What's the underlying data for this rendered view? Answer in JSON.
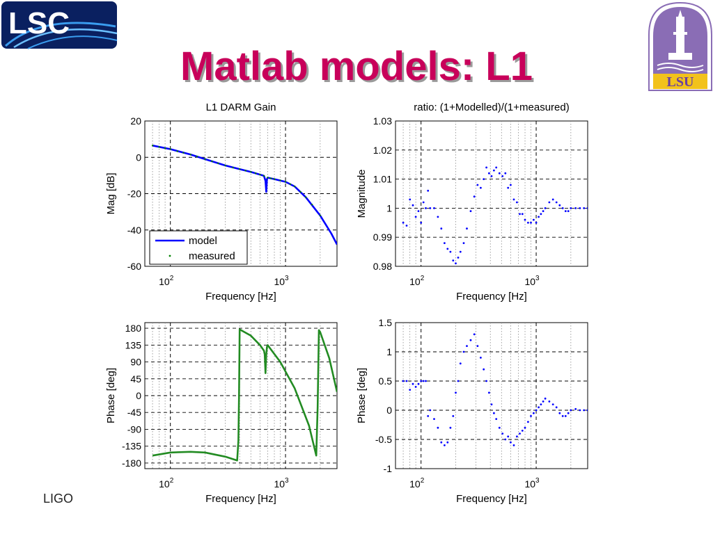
{
  "slide": {
    "title": "Matlab models: L1",
    "footer_text": "LIGO",
    "logos": {
      "left": "LSC",
      "right": "LSU"
    },
    "colors": {
      "title": "#c8005a",
      "logo_blue": "#0a2060",
      "lsu_purple": "#8a6db5",
      "lsu_gold": "#f2c21b",
      "model_line": "#0000ff",
      "measured_points": "#008000",
      "phase_line": "#228b22",
      "ratio_points": "#0000ff"
    }
  },
  "chart_data": [
    {
      "type": "line",
      "title": "L1 DARM Gain",
      "xlabel": "Frequency [Hz]",
      "ylabel": "Mag [dB]",
      "xscale": "log",
      "xlim": [
        60,
        2800
      ],
      "ylim": [
        -60,
        20
      ],
      "yticks": [
        -60,
        -40,
        -20,
        0,
        20
      ],
      "xtick_labels": [
        "10^2",
        "10^3"
      ],
      "legend": {
        "placement": "bottom-left",
        "entries": [
          "model",
          "measured"
        ]
      },
      "grid": true,
      "series": [
        {
          "name": "model",
          "style": "line",
          "x": [
            70,
            100,
            150,
            200,
            300,
            400,
            500,
            600,
            650,
            670,
            680,
            690,
            700,
            800,
            1000,
            1200,
            1500,
            2000,
            2500,
            2800
          ],
          "y": [
            6.5,
            4.5,
            1.5,
            -1,
            -4.5,
            -6.5,
            -8,
            -9.5,
            -10.2,
            -13,
            -19,
            -12,
            -11.2,
            -12,
            -13.5,
            -16,
            -22,
            -32,
            -42,
            -48
          ]
        },
        {
          "name": "measured",
          "style": "points",
          "x": [
            70,
            80,
            90,
            100,
            115,
            130,
            150,
            170,
            200,
            230,
            260,
            300,
            350,
            400,
            450,
            500,
            550,
            600,
            650,
            700,
            750,
            800,
            900,
            1000,
            1100,
            1200,
            1350,
            1500,
            1700,
            2000
          ],
          "y": [
            6.5,
            5.7,
            5,
            4.5,
            3.3,
            2.5,
            1.5,
            0.5,
            -1,
            -2.2,
            -3.3,
            -4.5,
            -5.7,
            -6.5,
            -7.3,
            -8,
            -8.8,
            -9.5,
            -10.2,
            -11.2,
            -11.6,
            -12,
            -12.7,
            -13.5,
            -14.8,
            -16,
            -19,
            -22,
            -26,
            -32
          ]
        }
      ]
    },
    {
      "type": "scatter",
      "title": "ratio: (1+Modelled)/(1+measured)",
      "xlabel": "Frequency [Hz]",
      "ylabel": "Magnitude",
      "xscale": "log",
      "xlim": [
        60,
        2800
      ],
      "ylim": [
        0.98,
        1.03
      ],
      "yticks": [
        0.98,
        0.99,
        1,
        1.01,
        1.02,
        1.03
      ],
      "ytick_labels": [
        "0.98",
        "0.99",
        "1",
        "1.01",
        "1.02",
        "1.03"
      ],
      "xtick_labels": [
        "10^2",
        "10^3"
      ],
      "grid": true,
      "series": [
        {
          "x": [
            70,
            75,
            80,
            85,
            90,
            95,
            100,
            105,
            110,
            115,
            120,
            130,
            140,
            150,
            160,
            170,
            180,
            190,
            200,
            210,
            220,
            235,
            250,
            270,
            290,
            310,
            330,
            350,
            370,
            390,
            410,
            430,
            450,
            480,
            510,
            540,
            570,
            600,
            640,
            680,
            720,
            760,
            800,
            850,
            900,
            950,
            1000,
            1050,
            1100,
            1150,
            1200,
            1300,
            1400,
            1500,
            1600,
            1700,
            1800,
            1900,
            2000,
            2200,
            2400,
            2600,
            2800
          ],
          "y": [
            0.995,
            0.994,
            1.003,
            1.001,
            0.997,
            0.999,
            0.995,
            1.002,
            1.0,
            1.006,
            1.0,
            1.0,
            0.997,
            0.993,
            0.988,
            0.986,
            0.985,
            0.982,
            0.981,
            0.983,
            0.985,
            0.988,
            0.993,
            0.999,
            1.004,
            1.008,
            1.007,
            1.01,
            1.014,
            1.012,
            1.011,
            1.013,
            1.014,
            1.012,
            1.011,
            1.012,
            1.007,
            1.008,
            1.003,
            1.002,
            0.998,
            0.998,
            0.996,
            0.995,
            0.995,
            0.996,
            0.995,
            0.997,
            0.998,
            0.999,
            1.0,
            1.002,
            1.003,
            1.002,
            1.001,
            1.0,
            0.999,
            0.999,
            1.0,
            1.0,
            1.0,
            1.0,
            1.0
          ]
        }
      ]
    },
    {
      "type": "line",
      "title": "",
      "xlabel": "Frequency [Hz]",
      "ylabel": "Phase [deg]",
      "xscale": "log",
      "xlim": [
        60,
        2800
      ],
      "ylim": [
        -195,
        195
      ],
      "yticks": [
        -180,
        -135,
        -90,
        -45,
        0,
        45,
        90,
        135,
        180
      ],
      "xtick_labels": [
        "10^2",
        "10^3"
      ],
      "grid": true,
      "series": [
        {
          "x": [
            70,
            100,
            150,
            200,
            300,
            380,
            390,
            395,
            400,
            500,
            600,
            650,
            660,
            670,
            680,
            690,
            700,
            900,
            1200,
            1600,
            1850,
            1900,
            1950,
            2000,
            2400,
            2800
          ],
          "y": [
            -160,
            -152,
            -150,
            -152,
            -163,
            -173,
            -120,
            0,
            177,
            160,
            135,
            120,
            110,
            60,
            110,
            130,
            135,
            90,
            20,
            -80,
            -160,
            -30,
            175,
            170,
            100,
            10
          ]
        }
      ]
    },
    {
      "type": "scatter",
      "title": "",
      "xlabel": "Frequency [Hz]",
      "ylabel": "Phase [deg]",
      "xscale": "log",
      "xlim": [
        60,
        2800
      ],
      "ylim": [
        -1,
        1.5
      ],
      "yticks": [
        -1,
        -0.5,
        0,
        0.5,
        1,
        1.5
      ],
      "ytick_labels": [
        "-1",
        "-0.5",
        "0",
        "0.5",
        "1",
        "1.5"
      ],
      "xtick_labels": [
        "10^2",
        "10^3"
      ],
      "grid": true,
      "series": [
        {
          "x": [
            70,
            75,
            80,
            85,
            90,
            95,
            100,
            105,
            110,
            115,
            120,
            130,
            140,
            150,
            160,
            170,
            180,
            190,
            200,
            210,
            220,
            235,
            250,
            270,
            290,
            310,
            330,
            350,
            370,
            390,
            410,
            430,
            450,
            480,
            510,
            540,
            570,
            600,
            640,
            680,
            720,
            760,
            800,
            850,
            900,
            950,
            1000,
            1050,
            1100,
            1150,
            1200,
            1300,
            1400,
            1500,
            1600,
            1700,
            1800,
            1900,
            2000,
            2200,
            2400,
            2600,
            2800
          ],
          "y": [
            0.5,
            0.5,
            0.35,
            0.45,
            0.4,
            0.45,
            0.5,
            0.5,
            0.5,
            -0.1,
            0.0,
            -0.15,
            -0.3,
            -0.55,
            -0.6,
            -0.55,
            -0.3,
            -0.1,
            0.3,
            0.5,
            0.8,
            1.0,
            1.1,
            1.2,
            1.3,
            1.1,
            0.9,
            0.7,
            0.5,
            0.3,
            0.1,
            -0.05,
            -0.15,
            -0.3,
            -0.4,
            -0.5,
            -0.45,
            -0.55,
            -0.6,
            -0.45,
            -0.4,
            -0.35,
            -0.3,
            -0.2,
            -0.1,
            -0.05,
            0.0,
            0.05,
            0.1,
            0.15,
            0.2,
            0.15,
            0.1,
            0.05,
            -0.05,
            -0.1,
            -0.1,
            -0.05,
            0.0,
            0.02,
            0.0,
            0.0,
            0.0
          ]
        }
      ]
    }
  ]
}
